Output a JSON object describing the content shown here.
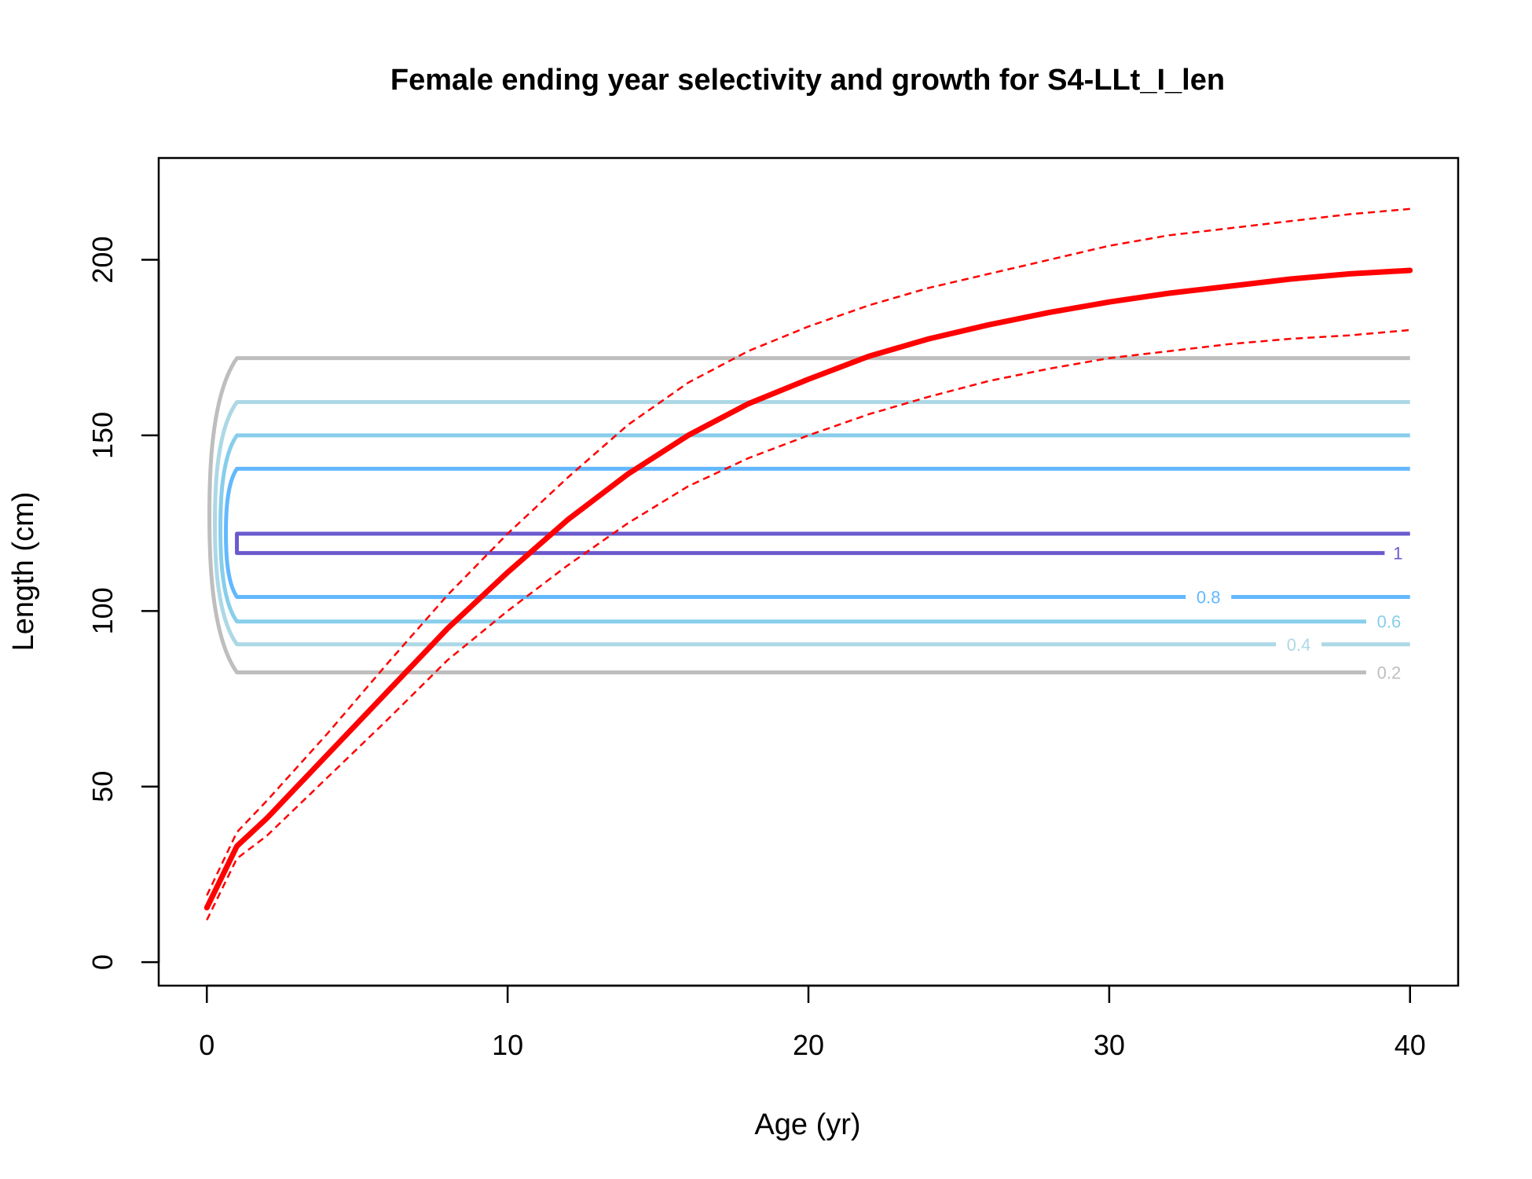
{
  "chart_data": {
    "type": "line",
    "title": "Female ending year selectivity and growth for S4-LLt_I_len",
    "xlabel": "Age (yr)",
    "ylabel": "Length (cm)",
    "xlim": [
      -1.6,
      41.6
    ],
    "ylim": [
      -6.7,
      229
    ],
    "x_ticks": [
      0,
      10,
      20,
      30,
      40
    ],
    "y_ticks": [
      0,
      50,
      100,
      150,
      200
    ],
    "x_tick_labels": [
      "0",
      "10",
      "20",
      "30",
      "40"
    ],
    "y_tick_labels": [
      "0",
      "50",
      "100",
      "150",
      "200"
    ],
    "grid": false,
    "legend": "none",
    "growth": {
      "color": "#ff0000",
      "age": [
        0,
        1,
        2,
        4,
        6,
        8,
        10,
        12,
        14,
        16,
        18,
        20,
        22,
        24,
        26,
        28,
        30,
        32,
        34,
        36,
        38,
        40
      ],
      "length": [
        15.5,
        33,
        41,
        59,
        77,
        95,
        111,
        126,
        139,
        150,
        159,
        166,
        172.5,
        177.5,
        181.5,
        185,
        188,
        190.5,
        192.5,
        194.5,
        196,
        197
      ],
      "upper": [
        19,
        37,
        46,
        65,
        85,
        104.5,
        122,
        138,
        153,
        165,
        174,
        181,
        187,
        192,
        196,
        200,
        204,
        207,
        209,
        211,
        213,
        214.5
      ],
      "lower": [
        12,
        29.5,
        36,
        52.5,
        69,
        86,
        100,
        113,
        125,
        135.5,
        143.5,
        150,
        156,
        161,
        165.5,
        169,
        172,
        174,
        176,
        177.5,
        178.5,
        180
      ]
    },
    "selectivity_contours": [
      {
        "level": "0.2",
        "color": "#bebebe",
        "lower": 82.5,
        "upper": 172,
        "label_age": 39.3
      },
      {
        "level": "0.4",
        "color": "#add8e6",
        "lower": 90.5,
        "upper": 159.5,
        "label_age": 36.3
      },
      {
        "level": "0.6",
        "color": "#87ceeb",
        "lower": 97,
        "upper": 150,
        "label_age": 39.3
      },
      {
        "level": "0.8",
        "color": "#63b8ff",
        "lower": 104,
        "upper": 140.5,
        "label_age": 33.3
      },
      {
        "level": "1",
        "color": "#6a5acd",
        "lower": 116.5,
        "upper": 122,
        "label_age": 39.6
      }
    ]
  }
}
